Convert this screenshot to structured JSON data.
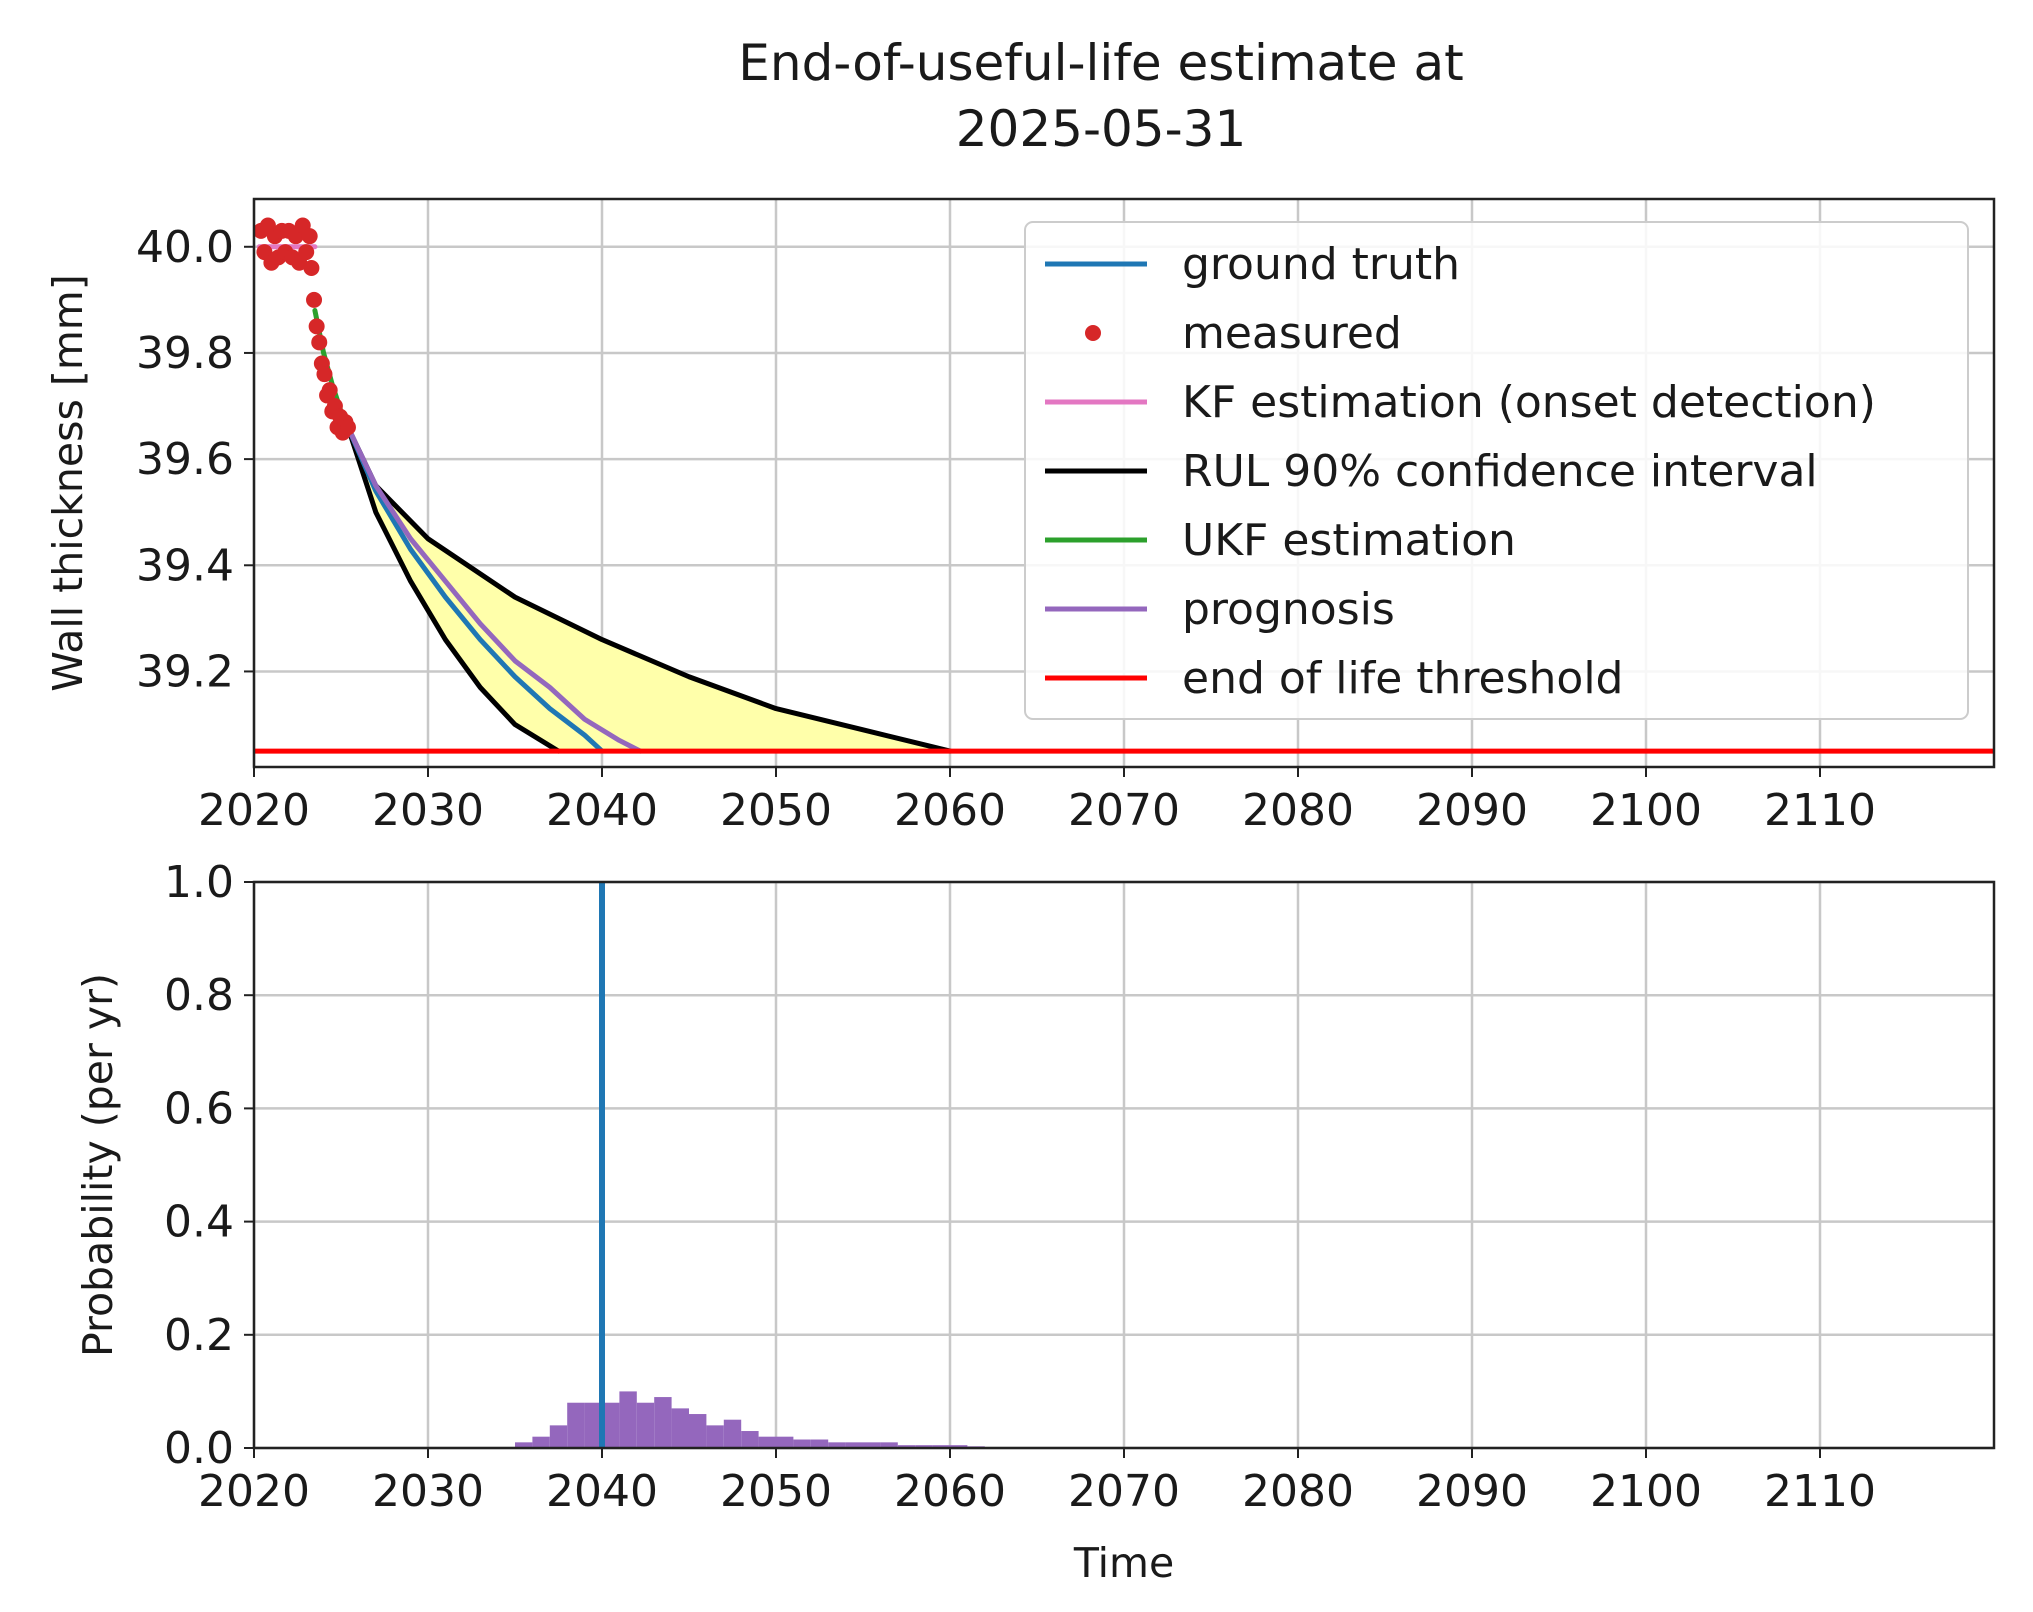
{
  "figure": {
    "title_line1": "End-of-useful-life estimate at",
    "title_line2": "2025-05-31"
  },
  "chart_data": [
    {
      "type": "line",
      "title": "End-of-useful-life estimate at 2025-05-31",
      "xlabel": "",
      "ylabel": "Wall thickness [mm]",
      "xlim": [
        2020,
        2120
      ],
      "ylim": [
        39.02,
        40.09
      ],
      "xticks": [
        2020,
        2030,
        2040,
        2050,
        2060,
        2070,
        2080,
        2090,
        2100,
        2110
      ],
      "yticks": [
        39.2,
        39.4,
        39.6,
        39.8,
        40.0
      ],
      "ytick_labels": [
        "39.2",
        "39.4",
        "39.6",
        "39.8",
        "40.0"
      ],
      "grid": true,
      "legend_position": "upper-right",
      "legend": [
        {
          "label": "ground truth",
          "color": "#1f77b4",
          "marker": "line"
        },
        {
          "label": "measured",
          "color": "#d62728",
          "marker": "dot"
        },
        {
          "label": "KF estimation (onset detection)",
          "color": "#e377c2",
          "marker": "line"
        },
        {
          "label": "RUL 90% confidence interval",
          "color": "#000000",
          "marker": "line"
        },
        {
          "label": "UKF estimation",
          "color": "#2ca02c",
          "marker": "line"
        },
        {
          "label": "prognosis",
          "color": "#9467bd",
          "marker": "line"
        },
        {
          "label": "end of life threshold",
          "color": "#ff0000",
          "marker": "line"
        }
      ],
      "threshold": 39.05,
      "ci_fill_color": "#ffffaa",
      "series": [
        {
          "name": "ground truth",
          "color": "#1f77b4",
          "x": [
            2025.4,
            2027,
            2029,
            2031,
            2033,
            2035,
            2037,
            2039,
            2040.0
          ],
          "y": [
            39.66,
            39.54,
            39.43,
            39.34,
            39.26,
            39.19,
            39.13,
            39.08,
            39.05
          ]
        },
        {
          "name": "KF estimation (onset detection)",
          "color": "#e377c2",
          "x": [
            2020.3,
            2021,
            2022,
            2023,
            2023.5
          ],
          "y": [
            40.0,
            40.0,
            40.0,
            40.0,
            40.0
          ]
        },
        {
          "name": "UKF estimation",
          "color": "#2ca02c",
          "x": [
            2023.5,
            2024,
            2024.5,
            2025,
            2025.4
          ],
          "y": [
            39.88,
            39.8,
            39.74,
            39.69,
            39.66
          ]
        },
        {
          "name": "prognosis",
          "color": "#9467bd",
          "x": [
            2025.4,
            2027,
            2029,
            2031,
            2033,
            2035,
            2037,
            2039,
            2041,
            2042.2
          ],
          "y": [
            39.66,
            39.55,
            39.45,
            39.37,
            39.29,
            39.22,
            39.17,
            39.11,
            39.07,
            39.05
          ]
        },
        {
          "name": "RUL 90% lower bound",
          "color": "#000000",
          "x": [
            2025.4,
            2027,
            2029,
            2031,
            2033,
            2035,
            2037.5
          ],
          "y": [
            39.66,
            39.5,
            39.37,
            39.26,
            39.17,
            39.1,
            39.05
          ]
        },
        {
          "name": "RUL 90% upper bound",
          "color": "#000000",
          "x": [
            2025.4,
            2027,
            2030,
            2035,
            2040,
            2045,
            2050,
            2055,
            2060
          ],
          "y": [
            39.66,
            39.55,
            39.45,
            39.34,
            39.26,
            39.19,
            39.13,
            39.09,
            39.05
          ]
        }
      ],
      "measured": {
        "color": "#d62728",
        "x": [
          2020.4,
          2020.6,
          2020.8,
          2021.0,
          2021.2,
          2021.4,
          2021.6,
          2021.8,
          2022.0,
          2022.2,
          2022.4,
          2022.6,
          2022.8,
          2023.0,
          2023.2,
          2023.3,
          2023.45,
          2023.6,
          2023.75,
          2023.9,
          2024.05,
          2024.2,
          2024.35,
          2024.5,
          2024.65,
          2024.8,
          2024.95,
          2025.1,
          2025.25,
          2025.4
        ],
        "y": [
          40.03,
          39.99,
          40.04,
          39.97,
          40.02,
          39.98,
          40.03,
          39.99,
          40.03,
          39.98,
          40.02,
          39.97,
          40.04,
          39.99,
          40.02,
          39.96,
          39.9,
          39.85,
          39.82,
          39.78,
          39.76,
          39.72,
          39.73,
          39.69,
          39.7,
          39.66,
          39.68,
          39.65,
          39.67,
          39.66
        ]
      }
    },
    {
      "type": "bar",
      "title": "",
      "xlabel": "Time",
      "ylabel": "Probability (per yr)",
      "xlim": [
        2020,
        2120
      ],
      "ylim": [
        0.0,
        1.0
      ],
      "xticks": [
        2020,
        2030,
        2040,
        2050,
        2060,
        2070,
        2080,
        2090,
        2100,
        2110
      ],
      "yticks": [
        0.0,
        0.2,
        0.4,
        0.6,
        0.8,
        1.0
      ],
      "ytick_labels": [
        "0.0",
        "0.2",
        "0.4",
        "0.6",
        "0.8",
        "1.0"
      ],
      "grid": true,
      "bar_color": "#9467bd",
      "bar_width": 1,
      "bins_start": [
        2035,
        2036,
        2037,
        2038,
        2039,
        2040,
        2041,
        2042,
        2043,
        2044,
        2045,
        2046,
        2047,
        2048,
        2049,
        2050,
        2051,
        2052,
        2053,
        2054,
        2055,
        2056,
        2057,
        2058,
        2059,
        2060,
        2061
      ],
      "values": [
        0.01,
        0.02,
        0.04,
        0.08,
        0.08,
        0.08,
        0.1,
        0.08,
        0.09,
        0.07,
        0.06,
        0.04,
        0.05,
        0.03,
        0.02,
        0.02,
        0.015,
        0.015,
        0.01,
        0.01,
        0.01,
        0.01,
        0.005,
        0.005,
        0.005,
        0.005,
        0.003
      ],
      "ground_truth_line": {
        "x": 2040.0,
        "color": "#1f77b4"
      }
    }
  ]
}
